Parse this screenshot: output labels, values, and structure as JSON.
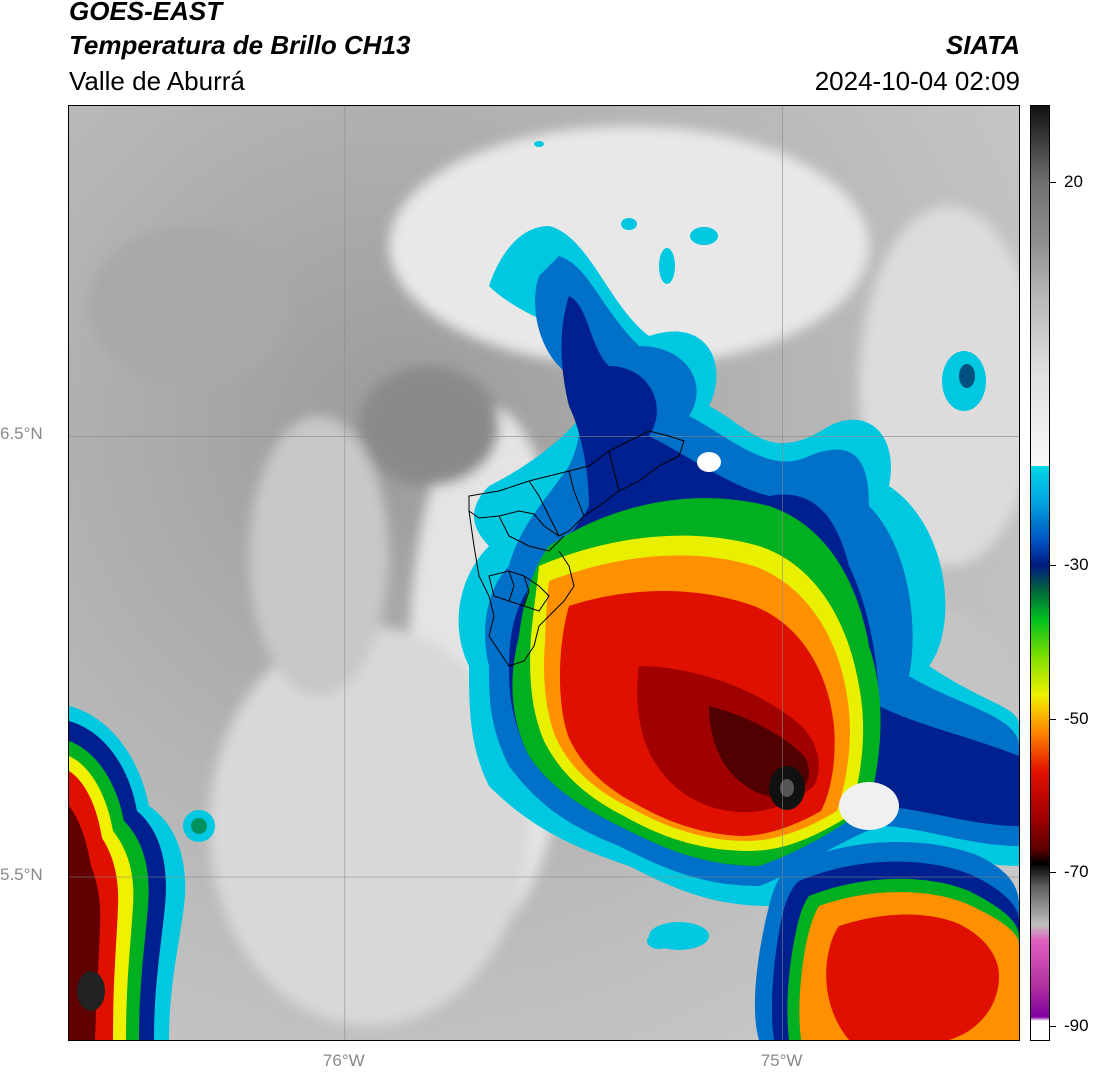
{
  "header": {
    "satellite": "GOES-EAST",
    "product": "Temperatura de Brillo CH13",
    "region": "Valle de Aburrá",
    "organization": "SIATA",
    "datetime": "2024-10-04 02:09"
  },
  "map": {
    "lat_labels": [
      {
        "text": "6.5°N",
        "value": 6.5
      },
      {
        "text": "5.5°N",
        "value": 5.5
      }
    ],
    "lon_labels": [
      {
        "text": "76°W",
        "value": -76
      },
      {
        "text": "75°W",
        "value": -75
      }
    ],
    "extent": {
      "lon_min": -76.63,
      "lon_max": -74.46,
      "lat_min": 5.13,
      "lat_max": 7.25
    }
  },
  "colorbar": {
    "unit_range": [
      -92,
      30
    ],
    "tick_labels": [
      {
        "text": "20",
        "value": 20
      },
      {
        "text": "-30",
        "value": -30
      },
      {
        "text": "-50",
        "value": -50
      },
      {
        "text": "-70",
        "value": -70
      },
      {
        "text": "-90",
        "value": -90
      }
    ],
    "colors": {
      "warm": "#a0a0a0",
      "cyan": "#00d8e8",
      "blue": "#0050c0",
      "navy": "#001a80",
      "green": "#00c020",
      "yellow": "#f0f000",
      "orange": "#ff8000",
      "red": "#e01000",
      "darkred": "#600000",
      "black": "#000000",
      "pink": "#e060c0",
      "purple": "#8000a0"
    }
  }
}
